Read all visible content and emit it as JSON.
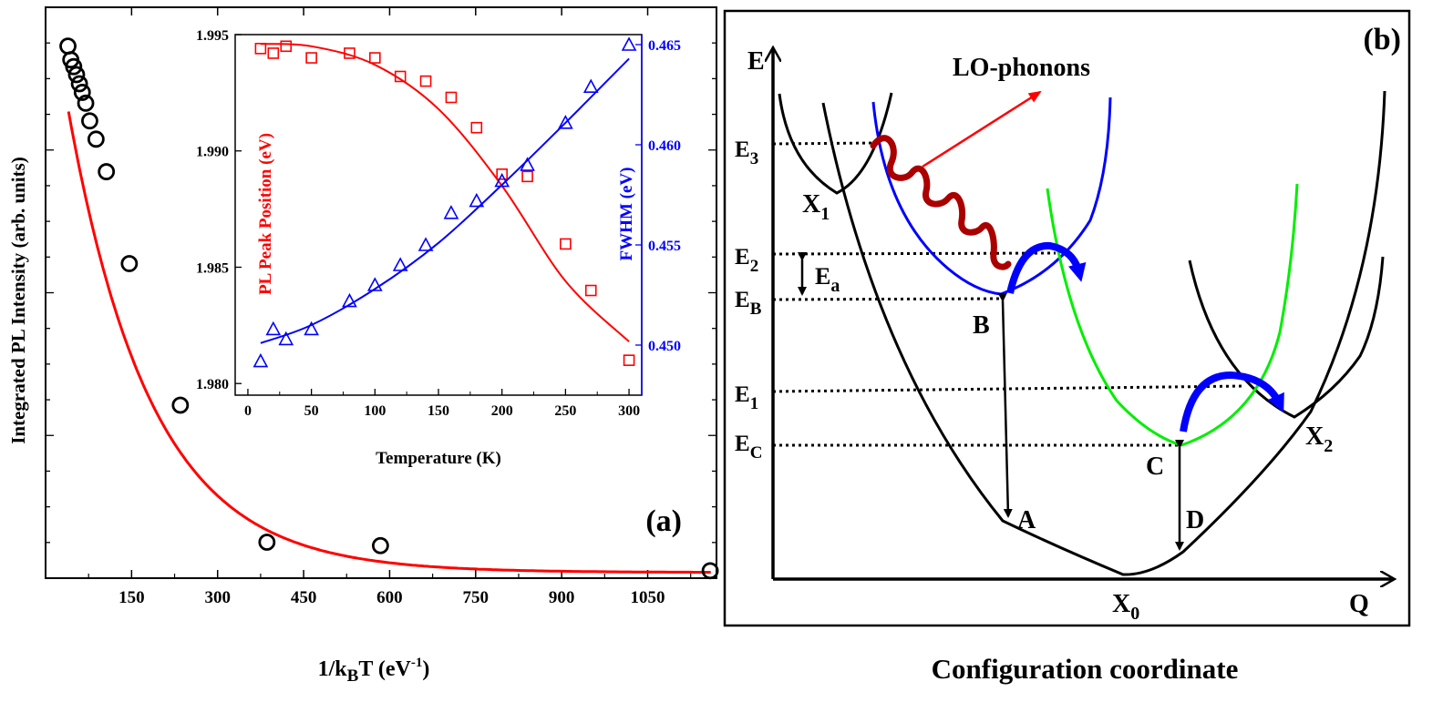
{
  "chart_data": [
    {
      "type": "scatter",
      "panel": "(a)",
      "panel_label": "(a)",
      "xlabel_main": "1/k",
      "xlabel_sub": "B",
      "xlabel_rest": "T (eV",
      "xlabel_sup": "-1",
      "xlabel_close": ")",
      "ylabel": "Integrated PL Intensity (arb. units)",
      "xlim": [
        0,
        1170
      ],
      "ylim": [
        0,
        1
      ],
      "xticks": [
        "150",
        "300",
        "450",
        "600",
        "750",
        "900",
        "1050"
      ],
      "xtick_values": [
        150,
        300,
        450,
        600,
        750,
        900,
        1050
      ],
      "points": {
        "x": [
          39,
          44,
          49,
          54,
          59,
          64,
          70,
          77,
          88,
          106,
          146,
          235,
          386,
          584,
          1159
        ],
        "y": [
          0.932,
          0.908,
          0.896,
          0.882,
          0.866,
          0.851,
          0.832,
          0.801,
          0.769,
          0.712,
          0.551,
          0.303,
          0.063,
          0.057,
          0.013
        ]
      },
      "fit_color": "#ff0000",
      "marker_color": "#000000"
    },
    {
      "type": "scatter",
      "panel": "inset",
      "xlabel": "Temperature (K)",
      "ylabel_left": "PL Peak Position (eV)",
      "ylabel_right": "FWHM (eV)",
      "xlim": [
        -10,
        310
      ],
      "xticks": [
        "0",
        "50",
        "100",
        "150",
        "200",
        "250",
        "300"
      ],
      "xtick_values": [
        0,
        50,
        100,
        150,
        200,
        250,
        300
      ],
      "ylim_left": [
        1.9795,
        1.995
      ],
      "yticks_left": [
        "1.980",
        "1.985",
        "1.990",
        "1.995"
      ],
      "ytick_values_left": [
        1.98,
        1.985,
        1.99,
        1.995
      ],
      "ylim_right": [
        0.4475,
        0.4655
      ],
      "yticks_right": [
        "0.450",
        "0.455",
        "0.460",
        "0.465"
      ],
      "ytick_values_right": [
        0.45,
        0.455,
        0.46,
        0.465
      ],
      "series": [
        {
          "name": "PL Peak Position",
          "axis": "left",
          "color": "#ff0000",
          "marker": "square",
          "x": [
            10,
            20,
            30,
            50,
            80,
            100,
            120,
            140,
            160,
            180,
            200,
            220,
            250,
            270,
            300
          ],
          "y": [
            1.9944,
            1.9942,
            1.9945,
            1.994,
            1.9942,
            1.994,
            1.9932,
            1.993,
            1.9923,
            1.991,
            1.989,
            1.9889,
            1.986,
            1.984,
            1.981
          ],
          "fit": {
            "x": [
              10,
              50,
              100,
              150,
              200,
              250,
              300
            ],
            "y": [
              1.9946,
              1.9945,
              1.9937,
              1.9918,
              1.9885,
              1.9844,
              1.9818
            ]
          }
        },
        {
          "name": "FWHM",
          "axis": "right",
          "color": "#0000ff",
          "marker": "triangle",
          "x": [
            10,
            20,
            30,
            50,
            80,
            100,
            120,
            140,
            160,
            180,
            200,
            220,
            250,
            270,
            300
          ],
          "y": [
            0.4492,
            0.4508,
            0.4503,
            0.4508,
            0.4522,
            0.453,
            0.454,
            0.455,
            0.4566,
            0.4572,
            0.4582,
            0.459,
            0.4611,
            0.4629,
            0.465
          ],
          "fit": {
            "x": [
              10,
              50,
              100,
              150,
              200,
              250,
              300
            ],
            "y": [
              0.4501,
              0.451,
              0.4528,
              0.4551,
              0.458,
              0.4611,
              0.4643
            ]
          }
        }
      ]
    }
  ],
  "diagram": {
    "panel_label": "(b)",
    "axis_e": "E",
    "axis_q": "Q",
    "xlabel": "Configuration coordinate",
    "lo_phonons": "LO-phonons",
    "levels": [
      {
        "name": "E",
        "sub": "3"
      },
      {
        "name": "E",
        "sub": "2"
      },
      {
        "name": "E",
        "sub": "B"
      },
      {
        "name": "E",
        "sub": "1"
      },
      {
        "name": "E",
        "sub": "C"
      }
    ],
    "activation": {
      "name": "E",
      "sub": "a"
    },
    "points": {
      "x1": {
        "name": "X",
        "sub": "1"
      },
      "x0": {
        "name": "X",
        "sub": "0"
      },
      "x2": {
        "name": "X",
        "sub": "2"
      },
      "a": "A",
      "b": "B",
      "c": "C",
      "d": "D"
    },
    "colors": {
      "ground": "#000000",
      "b_curve": "#0000ff",
      "c_curve": "#00ee00",
      "phonon": "#aa0000",
      "arrow_red": "#ff0000",
      "arrow_blue": "#0000ff"
    }
  }
}
